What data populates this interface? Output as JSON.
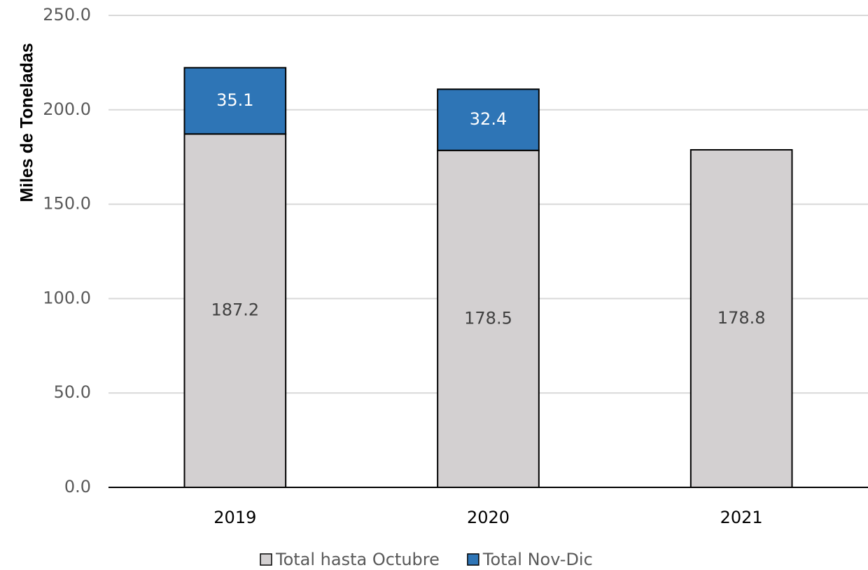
{
  "chart_data": {
    "type": "stacked_bar",
    "y_label": "Miles de Toneladas",
    "categories": [
      "2019",
      "2020",
      "2021"
    ],
    "series": [
      {
        "name": "Total hasta Octubre",
        "color": "#d3d0d1",
        "values": [
          187.2,
          178.5,
          178.8
        ]
      },
      {
        "name": "Total Nov-Dic",
        "color": "#2e75b6",
        "values": [
          35.1,
          32.4,
          null
        ]
      }
    ],
    "ylim": [
      0,
      250
    ],
    "yticks": [
      {
        "value": 0,
        "label": "0.0"
      },
      {
        "value": 50,
        "label": "50.0"
      },
      {
        "value": 100,
        "label": "100.0"
      },
      {
        "value": 150,
        "label": "150.0"
      },
      {
        "value": 200,
        "label": "200.0"
      },
      {
        "value": 250,
        "label": "250.0"
      }
    ],
    "grid": true,
    "legend": "bottom"
  }
}
